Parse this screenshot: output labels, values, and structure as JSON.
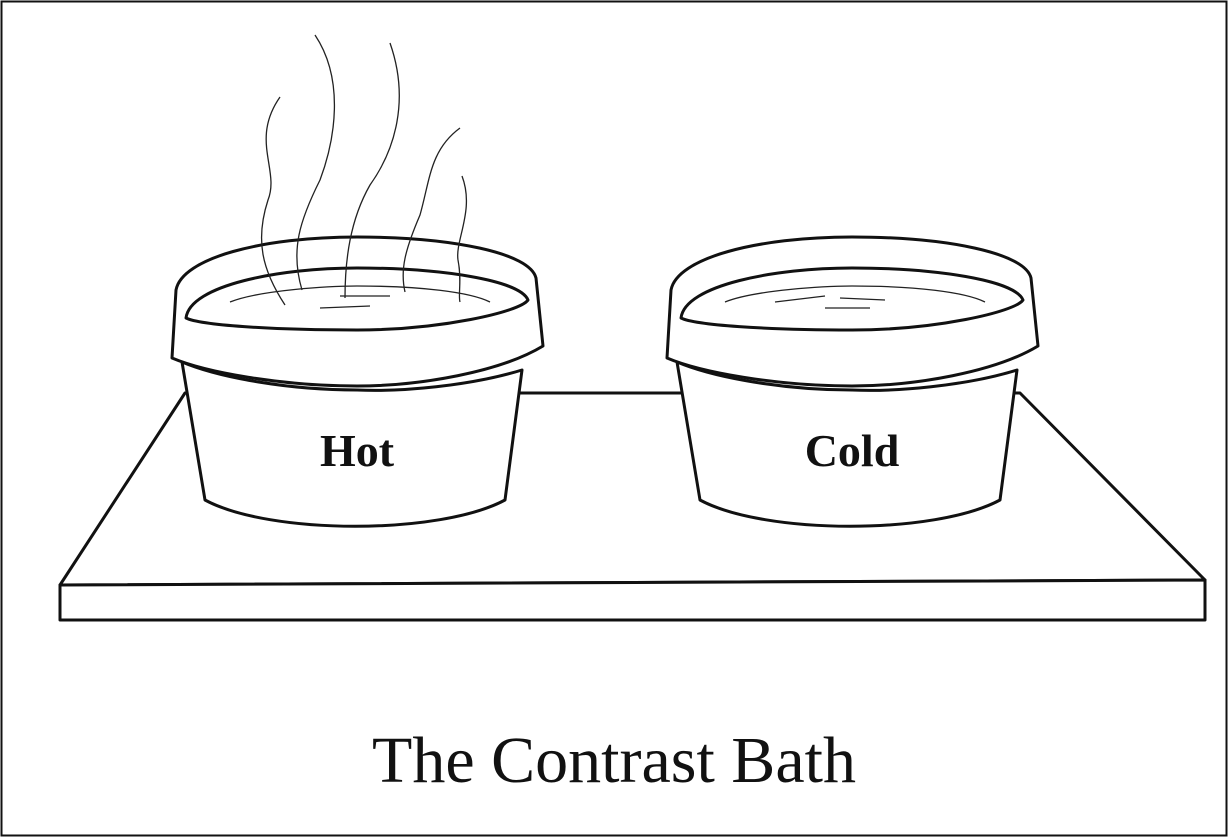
{
  "tubs": [
    {
      "label": "Hot"
    },
    {
      "label": "Cold"
    }
  ],
  "caption": "The Contrast Bath"
}
